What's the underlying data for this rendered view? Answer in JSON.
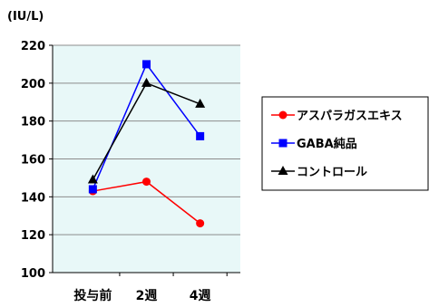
{
  "chart_data": {
    "type": "line",
    "ylabel": "(IU/L)",
    "categories": [
      "投与前",
      "2週",
      "4週"
    ],
    "ylim": [
      100,
      220
    ],
    "yticks": [
      100,
      120,
      140,
      160,
      180,
      200,
      220
    ],
    "grid": true,
    "legend_position": "right",
    "plot_background": "#e8f8f8",
    "series": [
      {
        "name": "アスパラガスエキス",
        "values": [
          143,
          148,
          126
        ],
        "color": "#ff0000",
        "marker": "circle"
      },
      {
        "name": "GABA純品",
        "values": [
          144,
          210,
          172
        ],
        "color": "#0000ff",
        "marker": "square"
      },
      {
        "name": "コントロール",
        "values": [
          149,
          200,
          189
        ],
        "color": "#000000",
        "marker": "triangle"
      }
    ]
  }
}
